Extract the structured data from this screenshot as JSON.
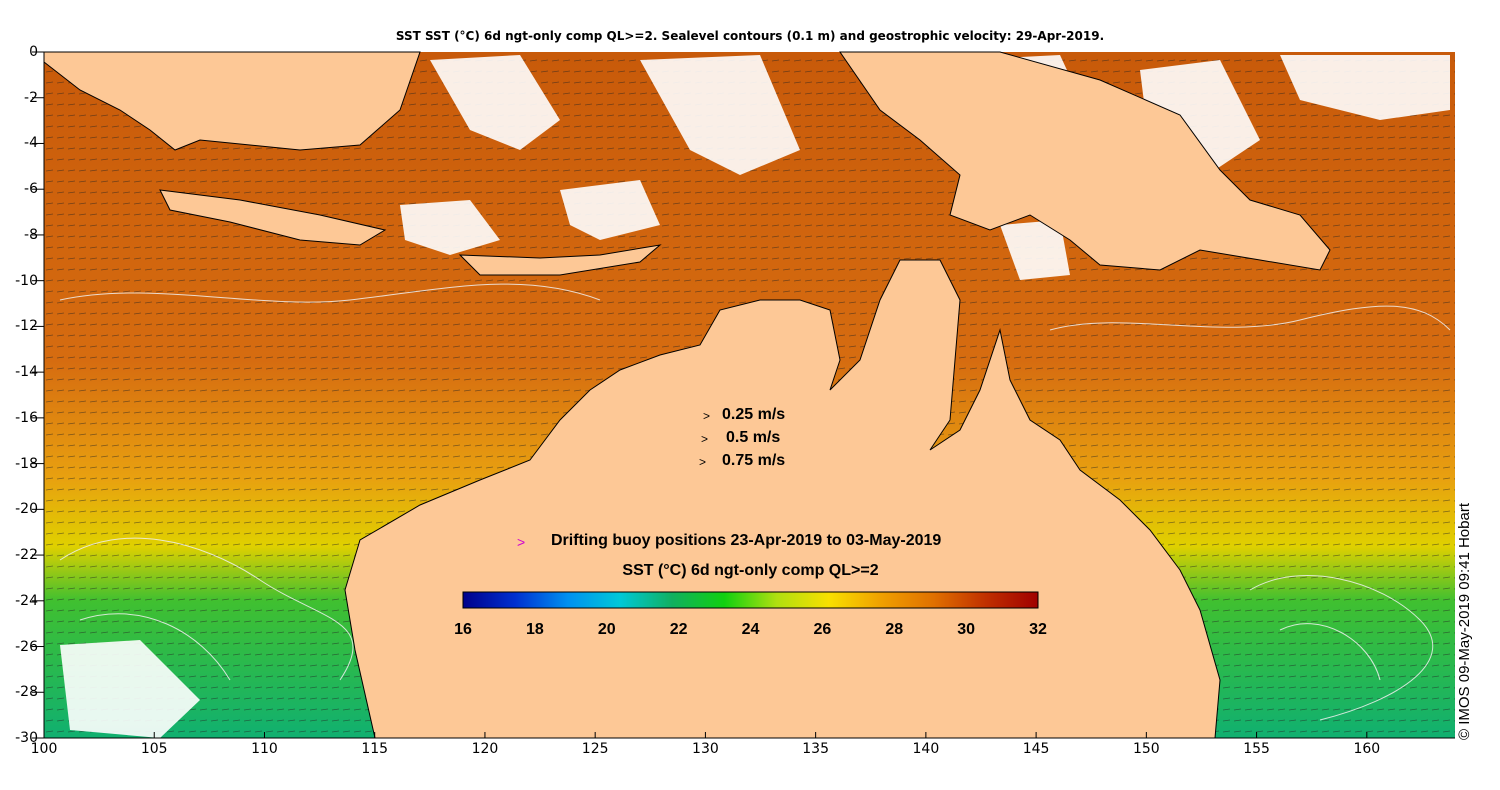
{
  "title": "SST SST (°C) 6d ngt-only comp QL>=2. Sealevel contours (0.1 m) and geostrophic velocity: 29-Apr-2019.",
  "map": {
    "lon_range": [
      100,
      164
    ],
    "lat_range": [
      -30,
      0
    ],
    "x_ticks": [
      "100",
      "105",
      "110",
      "115",
      "120",
      "125",
      "130",
      "135",
      "140",
      "145",
      "150",
      "155",
      "160"
    ],
    "y_ticks": [
      "0",
      "-2",
      "-4",
      "-6",
      "-8",
      "-10",
      "-12",
      "-14",
      "-16",
      "-18",
      "-20",
      "-22",
      "-24",
      "-26",
      "-28",
      "-30"
    ],
    "colors": {
      "land": "#fdc896",
      "cloud": "#ffffff",
      "contour": "#f0f0f0",
      "coast": "#000000"
    }
  },
  "velocity_legend": [
    {
      "marker": ">",
      "label": "0.25 m/s"
    },
    {
      "marker": ">",
      "label": "0.5 m/s"
    },
    {
      "marker": ">",
      "label": "0.75 m/s"
    }
  ],
  "buoy_legend": {
    "marker": ">",
    "label": "Drifting buoy positions 23-Apr-2019 to 03-May-2019",
    "color": "#d000d0"
  },
  "colorbar": {
    "title": "SST (°C) 6d ngt-only comp QL>=2",
    "ticks": [
      "16",
      "18",
      "20",
      "22",
      "24",
      "26",
      "28",
      "30",
      "32"
    ],
    "range": [
      16,
      32
    ],
    "stops": [
      "#00008a",
      "#0030d0",
      "#0090f0",
      "#00c8d8",
      "#10b060",
      "#10d010",
      "#b0e010",
      "#f8e000",
      "#f0a000",
      "#e07000",
      "#c03000",
      "#a00000"
    ]
  },
  "credit": "© IMOS 09-May-2019 09:41 Hobart"
}
